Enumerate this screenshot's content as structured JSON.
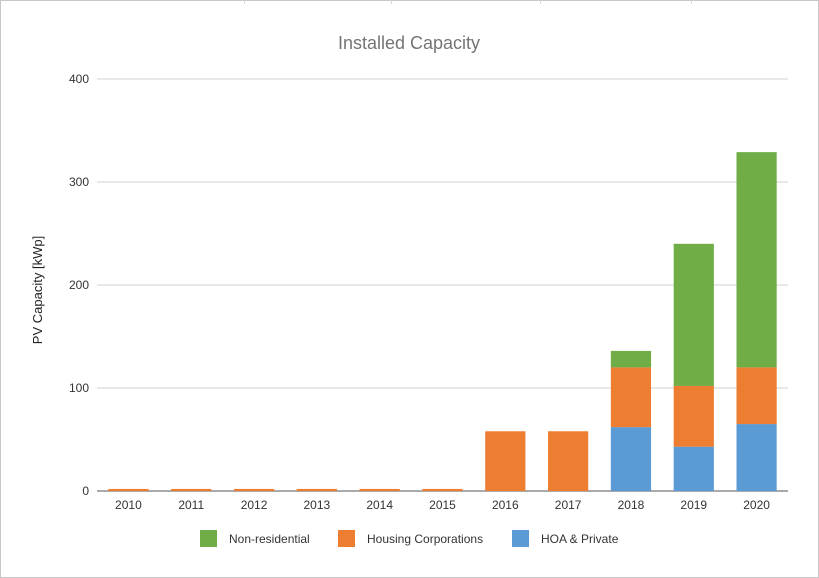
{
  "chart_data": {
    "type": "bar",
    "stacked": true,
    "title": "Installed Capacity",
    "xlabel": "",
    "ylabel": "PV Capacity [kWp]",
    "ylim": [
      0,
      400
    ],
    "yticks": [
      0,
      100,
      200,
      300,
      400
    ],
    "grid": true,
    "legend_position": "bottom",
    "categories": [
      "2010",
      "2011",
      "2012",
      "2013",
      "2014",
      "2015",
      "2016",
      "2017",
      "2018",
      "2019",
      "2020"
    ],
    "series": [
      {
        "name": "HOA & Private",
        "color": "#5b9bd5",
        "values": [
          0,
          0,
          0,
          0,
          0,
          0,
          0,
          0,
          62,
          43,
          65
        ]
      },
      {
        "name": "Housing Corporations",
        "color": "#ed7d31",
        "values": [
          2,
          2,
          2,
          2,
          2,
          2,
          58,
          58,
          58,
          59,
          55
        ]
      },
      {
        "name": "Non-residential",
        "color": "#70ad47",
        "values": [
          0,
          0,
          0,
          0,
          0,
          0,
          0,
          0,
          16,
          138,
          209
        ]
      }
    ],
    "legend_order": [
      "Non-residential",
      "Housing Corporations",
      "HOA & Private"
    ]
  }
}
